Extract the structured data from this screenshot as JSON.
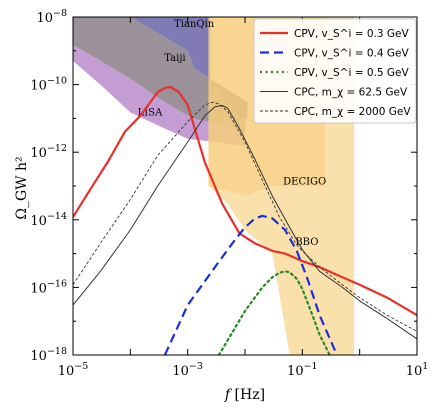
{
  "chart_data": {
    "type": "line",
    "xlabel": "f [Hz]",
    "ylabel": "Ω_GW h²",
    "xscale": "log",
    "yscale": "log",
    "xlim": [
      1e-05,
      10
    ],
    "ylim": [
      1e-18,
      1e-08
    ],
    "xticks": [
      {
        "value": 1e-05,
        "label": "10^-5"
      },
      {
        "value": 0.001,
        "label": "10^-3"
      },
      {
        "value": 0.1,
        "label": "10^-1"
      },
      {
        "value": 10,
        "label": "10^1"
      }
    ],
    "yticks": [
      {
        "value": 1e-08,
        "label": "10^-8"
      },
      {
        "value": 1e-10,
        "label": "10^-10"
      },
      {
        "value": 1e-12,
        "label": "10^-12"
      },
      {
        "value": 1e-14,
        "label": "10^-14"
      },
      {
        "value": 1e-16,
        "label": "10^-16"
      },
      {
        "value": 1e-18,
        "label": "10^-18"
      }
    ],
    "legend_position": "top-right",
    "sensitivity_regions": [
      {
        "name": "TianQin",
        "color": "#6a64a8",
        "points": [
          [
            0.0001,
            1e-08
          ],
          [
            0.0025,
            1e-08
          ],
          [
            0.0025,
            1.5e-10
          ],
          [
            0.003,
            1e-10
          ],
          [
            0.008,
            1e-11
          ],
          [
            0.011,
            1e-11
          ],
          [
            0.011,
            3e-11
          ],
          [
            0.0013,
            3e-10
          ],
          [
            0.001,
            1e-09
          ],
          [
            0.0001,
            1e-08
          ]
        ]
      },
      {
        "name": "Taiji",
        "color": "#8a7e86",
        "points": [
          [
            1e-05,
            1e-08
          ],
          [
            0.0001,
            1e-08
          ],
          [
            0.001,
            1e-09
          ],
          [
            0.0013,
            3e-10
          ],
          [
            0.011,
            3e-11
          ],
          [
            0.01,
            4e-12
          ],
          [
            0.003,
            7e-12
          ],
          [
            0.0012,
            1e-11
          ],
          [
            0.0004,
            3e-11
          ],
          [
            0.0001,
            1.5e-10
          ],
          [
            1e-05,
            1.5e-09
          ]
        ]
      },
      {
        "name": "LISA",
        "color": "#b98ccb",
        "points": [
          [
            1e-05,
            1.5e-09
          ],
          [
            0.0001,
            1.5e-10
          ],
          [
            0.0004,
            3e-11
          ],
          [
            0.0012,
            1e-11
          ],
          [
            0.003,
            7e-12
          ],
          [
            0.01,
            4e-12
          ],
          [
            0.01,
            1.5e-12
          ],
          [
            0.003,
            2e-12
          ],
          [
            0.001,
            2.5e-12
          ],
          [
            0.0004,
            5e-12
          ],
          [
            0.0001,
            1.5e-11
          ],
          [
            3e-05,
            1e-10
          ],
          [
            1e-05,
            5e-10
          ]
        ]
      },
      {
        "name": "DECIGO",
        "color": "#f7ce7c",
        "points": [
          [
            0.0023,
            1e-08
          ],
          [
            0.25,
            1e-08
          ],
          [
            0.25,
            1e-13
          ],
          [
            0.03,
            1e-13
          ],
          [
            0.01,
            5e-14
          ],
          [
            0.0023,
            1e-13
          ]
        ]
      },
      {
        "name": "BBO",
        "color": "#f9dc9e",
        "points": [
          [
            0.0023,
            1e-13
          ],
          [
            0.01,
            5e-14
          ],
          [
            0.03,
            1e-13
          ],
          [
            0.25,
            1e-13
          ],
          [
            0.25,
            1e-08
          ],
          [
            0.8,
            1e-08
          ],
          [
            0.8,
            1e-18
          ],
          [
            0.06,
            1e-18
          ],
          [
            0.03,
            1e-15
          ],
          [
            0.01,
            5e-15
          ],
          [
            0.005,
            3e-14
          ],
          [
            0.0023,
            1e-13
          ]
        ]
      }
    ],
    "region_labels": [
      {
        "text": "TianQin",
        "x": 0.0013,
        "y": 5e-09
      },
      {
        "text": "Taiji",
        "x": 0.0006,
        "y": 5e-10
      },
      {
        "text": "LISA",
        "x": 0.00022,
        "y": 1.2e-11
      },
      {
        "text": "DECIGO",
        "x": 0.11,
        "y": 1.1e-13
      },
      {
        "text": "BBO",
        "x": 0.12,
        "y": 1.8e-15
      }
    ],
    "series": [
      {
        "name": "CPV, v_S^i = 0.3 GeV",
        "color": "#e8312a",
        "style": "solid",
        "width": 2.2,
        "x": [
          1e-05,
          2e-05,
          4e-05,
          8e-05,
          0.00015,
          0.0003,
          0.0004,
          0.0005,
          0.0007,
          0.001,
          0.002,
          0.004,
          0.008,
          0.015,
          0.03,
          0.05,
          0.1,
          0.2,
          0.5,
          1,
          3,
          10
        ],
        "y": [
          1.2e-14,
          8e-14,
          5e-13,
          4e-12,
          1.2e-11,
          6e-11,
          8e-11,
          8.5e-11,
          6e-11,
          2.5e-11,
          5e-13,
          3e-14,
          4e-15,
          2e-15,
          1.2e-15,
          1e-15,
          6e-16,
          4e-16,
          2e-16,
          1.2e-16,
          5e-17,
          1.5e-17
        ]
      },
      {
        "name": "CPV, v_S^i = 0.4 GeV",
        "color": "#1a2fd6",
        "style": "dashed",
        "width": 2.2,
        "x": [
          0.0004,
          0.001,
          0.003,
          0.006,
          0.01,
          0.015,
          0.02,
          0.03,
          0.05,
          0.08,
          0.12,
          0.2,
          0.4
        ],
        "y": [
          1e-18,
          3e-17,
          4e-16,
          2e-15,
          6e-15,
          1.1e-14,
          1.3e-14,
          1.1e-14,
          5e-15,
          1.2e-15,
          2e-16,
          1.5e-17,
          1e-18
        ]
      },
      {
        "name": "CPV, v_S^i = 0.5 GeV",
        "color": "#2a8a2a",
        "style": "dotted",
        "width": 2.2,
        "x": [
          0.0035,
          0.01,
          0.02,
          0.03,
          0.04,
          0.05,
          0.06,
          0.08,
          0.1,
          0.15,
          0.2,
          0.3
        ],
        "y": [
          1e-18,
          2e-17,
          1e-16,
          2e-16,
          2.7e-16,
          3e-16,
          2.8e-16,
          1.8e-16,
          9e-17,
          1.5e-17,
          4e-18,
          1e-18
        ]
      },
      {
        "name": "CPC, m_χ = 62.5 GeV",
        "color": "#333333",
        "style": "solid",
        "width": 1,
        "x": [
          1e-05,
          3e-05,
          0.0001,
          0.0003,
          0.001,
          0.002,
          0.003,
          0.004,
          0.005,
          0.008,
          0.015,
          0.03,
          0.06,
          0.1,
          0.2,
          0.5,
          1,
          3,
          10
        ],
        "y": [
          3e-17,
          3e-16,
          5e-15,
          1e-13,
          2e-12,
          1.2e-11,
          2.2e-11,
          2.4e-11,
          2e-11,
          5e-12,
          6e-13,
          5e-14,
          6e-15,
          1.3e-15,
          3e-16,
          1e-16,
          4e-17,
          1.2e-17,
          3e-18
        ]
      },
      {
        "name": "CPC, m_χ = 2000 GeV",
        "color": "#333333",
        "style": "dashed-thin",
        "width": 0.9,
        "x": [
          1e-05,
          3e-05,
          0.0001,
          0.0003,
          0.001,
          0.002,
          0.0027,
          0.0035,
          0.005,
          0.01,
          0.02,
          0.04,
          0.08,
          0.1,
          0.2,
          0.5,
          1,
          3,
          10
        ],
        "y": [
          1.2e-16,
          2e-15,
          4e-14,
          8e-13,
          8e-12,
          2.5e-11,
          3e-11,
          2.7e-11,
          1.6e-11,
          2e-12,
          1.5e-13,
          1.2e-14,
          1.8e-15,
          1.2e-15,
          4e-16,
          1.2e-16,
          5e-17,
          1.5e-17,
          5e-18
        ]
      }
    ]
  }
}
